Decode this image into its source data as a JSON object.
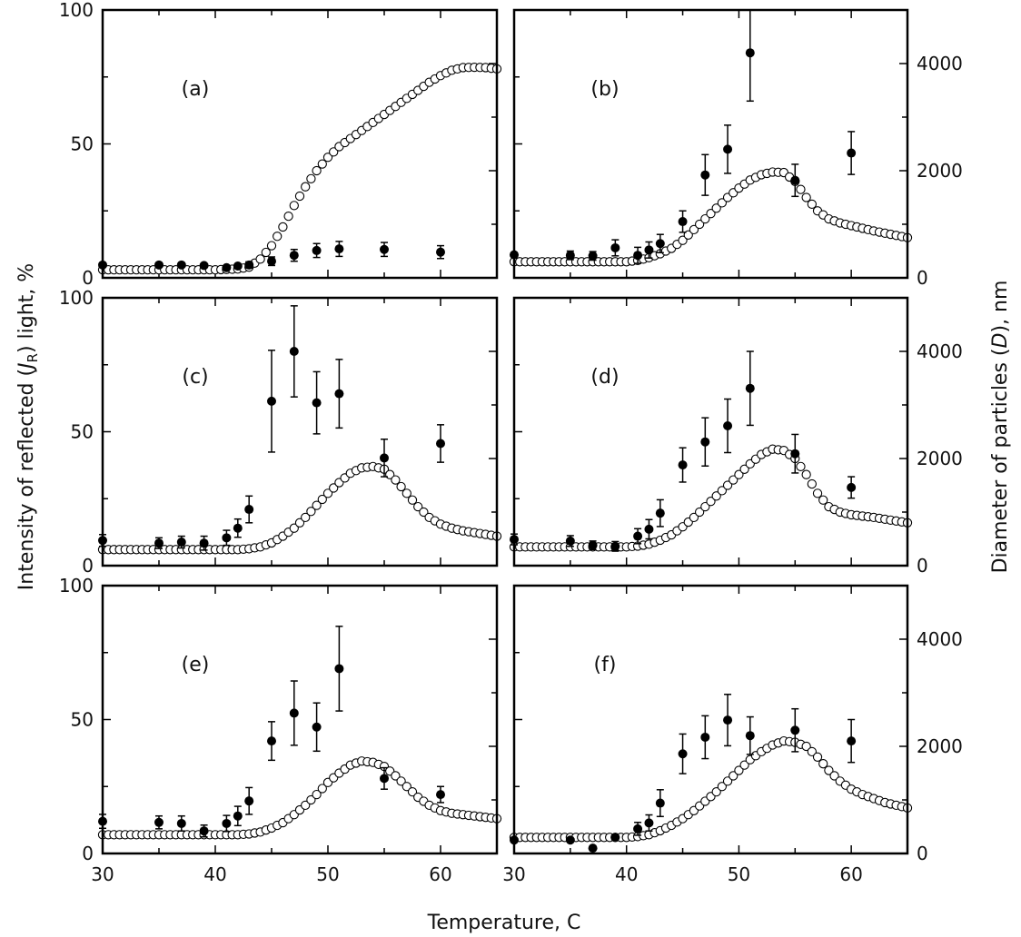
{
  "figure": {
    "xlabel": "Temperature, C",
    "ylabel_left_prefix": "Intensity of  reflected (",
    "ylabel_left_sym": "J",
    "ylabel_left_sub": "R",
    "ylabel_left_suffix": ") light, %",
    "ylabel_right_prefix": "Diameter of particles (",
    "ylabel_right_sym": "D",
    "ylabel_right_suffix": "), nm"
  },
  "chart_data": {
    "type": "scatter",
    "xlim": [
      30,
      65
    ],
    "x_ticks": [
      30,
      40,
      50,
      60
    ],
    "ylim_left": [
      0,
      100
    ],
    "y_ticks_left": [
      0,
      50,
      100
    ],
    "ylim_right": [
      0,
      5000
    ],
    "y_ticks_right": [
      0,
      2000,
      4000
    ],
    "series_info": [
      {
        "name": "Intensity of reflected light (J_R), %",
        "marker": "open circle",
        "axis": "left"
      },
      {
        "name": "Diameter of particles (D), nm",
        "marker": "filled circle with error bars",
        "axis": "right"
      }
    ],
    "panels": [
      {
        "label": "(a)",
        "jr_curve": [
          [
            30,
            3
          ],
          [
            32,
            3
          ],
          [
            34,
            3
          ],
          [
            36,
            3
          ],
          [
            38,
            3
          ],
          [
            40,
            3
          ],
          [
            42,
            3.3
          ],
          [
            43,
            4
          ],
          [
            44,
            7
          ],
          [
            45,
            12
          ],
          [
            46,
            19
          ],
          [
            47,
            27
          ],
          [
            48,
            34
          ],
          [
            49,
            40
          ],
          [
            50,
            45
          ],
          [
            51,
            49
          ],
          [
            52,
            52
          ],
          [
            53,
            55
          ],
          [
            54,
            58
          ],
          [
            55,
            61
          ],
          [
            56,
            64
          ],
          [
            57,
            67
          ],
          [
            58,
            70
          ],
          [
            59,
            73
          ],
          [
            60,
            75.5
          ],
          [
            61,
            77.5
          ],
          [
            62,
            78.5
          ],
          [
            63,
            78.6
          ],
          [
            64,
            78.5
          ],
          [
            65,
            78
          ]
        ],
        "diameter_points": [
          {
            "x": 30,
            "y": 240,
            "err": 0
          },
          {
            "x": 35,
            "y": 240,
            "err": 0
          },
          {
            "x": 37,
            "y": 240,
            "err": 0
          },
          {
            "x": 39,
            "y": 230,
            "err": 0
          },
          {
            "x": 41,
            "y": 190,
            "err": 0
          },
          {
            "x": 42,
            "y": 220,
            "err": 0
          },
          {
            "x": 43,
            "y": 240,
            "err": 60
          },
          {
            "x": 45,
            "y": 310,
            "err": 80
          },
          {
            "x": 47,
            "y": 420,
            "err": 110
          },
          {
            "x": 49,
            "y": 510,
            "err": 130
          },
          {
            "x": 51,
            "y": 540,
            "err": 140
          },
          {
            "x": 55,
            "y": 530,
            "err": 130
          },
          {
            "x": 60,
            "y": 480,
            "err": 120
          }
        ]
      },
      {
        "label": "(b)",
        "jr_curve": [
          [
            30,
            6
          ],
          [
            34,
            6
          ],
          [
            38,
            6
          ],
          [
            40,
            6
          ],
          [
            41,
            6.5
          ],
          [
            42,
            7.5
          ],
          [
            43,
            9
          ],
          [
            44,
            11
          ],
          [
            45,
            14
          ],
          [
            46,
            18
          ],
          [
            47,
            22
          ],
          [
            48,
            26
          ],
          [
            49,
            30
          ],
          [
            50,
            33.5
          ],
          [
            51,
            36.5
          ],
          [
            52,
            38.5
          ],
          [
            53,
            39.5
          ],
          [
            54,
            39.3
          ],
          [
            55,
            36
          ],
          [
            56,
            30
          ],
          [
            57,
            25
          ],
          [
            58,
            22
          ],
          [
            59,
            20.5
          ],
          [
            60,
            19.5
          ],
          [
            62,
            17.5
          ],
          [
            65,
            15
          ]
        ],
        "diameter_points": [
          {
            "x": 30,
            "y": 430,
            "err": 0
          },
          {
            "x": 35,
            "y": 420,
            "err": 80
          },
          {
            "x": 37,
            "y": 410,
            "err": 80
          },
          {
            "x": 39,
            "y": 560,
            "err": 150
          },
          {
            "x": 41,
            "y": 420,
            "err": 150
          },
          {
            "x": 42,
            "y": 520,
            "err": 150
          },
          {
            "x": 43,
            "y": 640,
            "err": 170
          },
          {
            "x": 45,
            "y": 1050,
            "err": 200
          },
          {
            "x": 47,
            "y": 1920,
            "err": 380
          },
          {
            "x": 49,
            "y": 2400,
            "err": 450
          },
          {
            "x": 51,
            "y": 4200,
            "err": 900
          },
          {
            "x": 55,
            "y": 1820,
            "err": 300
          },
          {
            "x": 60,
            "y": 2330,
            "err": 400
          }
        ]
      },
      {
        "label": "(c)",
        "jr_curve": [
          [
            30,
            6
          ],
          [
            34,
            6
          ],
          [
            38,
            6
          ],
          [
            42,
            6
          ],
          [
            43,
            6.3
          ],
          [
            44,
            7
          ],
          [
            45,
            8.5
          ],
          [
            46,
            11
          ],
          [
            47,
            14
          ],
          [
            48,
            18
          ],
          [
            49,
            22.5
          ],
          [
            50,
            27
          ],
          [
            51,
            31
          ],
          [
            52,
            34.5
          ],
          [
            53,
            36.5
          ],
          [
            54,
            37
          ],
          [
            55,
            36
          ],
          [
            56,
            32
          ],
          [
            57,
            27
          ],
          [
            58,
            22
          ],
          [
            59,
            18
          ],
          [
            60,
            15.5
          ],
          [
            61,
            14
          ],
          [
            62,
            13
          ],
          [
            65,
            11
          ]
        ],
        "diameter_points": [
          {
            "x": 30,
            "y": 470,
            "err": 110
          },
          {
            "x": 35,
            "y": 420,
            "err": 100
          },
          {
            "x": 37,
            "y": 440,
            "err": 110
          },
          {
            "x": 39,
            "y": 420,
            "err": 130
          },
          {
            "x": 41,
            "y": 520,
            "err": 140
          },
          {
            "x": 42,
            "y": 700,
            "err": 170
          },
          {
            "x": 43,
            "y": 1050,
            "err": 250
          },
          {
            "x": 45,
            "y": 3070,
            "err": 950
          },
          {
            "x": 47,
            "y": 4000,
            "err": 850
          },
          {
            "x": 49,
            "y": 3040,
            "err": 580
          },
          {
            "x": 51,
            "y": 3210,
            "err": 640
          },
          {
            "x": 55,
            "y": 2010,
            "err": 350
          },
          {
            "x": 60,
            "y": 2280,
            "err": 350
          }
        ]
      },
      {
        "label": "(d)",
        "jr_curve": [
          [
            30,
            7
          ],
          [
            34,
            7
          ],
          [
            38,
            7
          ],
          [
            40,
            7
          ],
          [
            41,
            7.3
          ],
          [
            42,
            8
          ],
          [
            43,
            9.5
          ],
          [
            44,
            11.5
          ],
          [
            45,
            14.5
          ],
          [
            46,
            18
          ],
          [
            47,
            22
          ],
          [
            48,
            26
          ],
          [
            49,
            30
          ],
          [
            50,
            34
          ],
          [
            51,
            38
          ],
          [
            52,
            41.5
          ],
          [
            53,
            43.5
          ],
          [
            54,
            43
          ],
          [
            55,
            40
          ],
          [
            56,
            34
          ],
          [
            57,
            27
          ],
          [
            58,
            22
          ],
          [
            59,
            20
          ],
          [
            60,
            19
          ],
          [
            62,
            18
          ],
          [
            65,
            16
          ]
        ],
        "diameter_points": [
          {
            "x": 30,
            "y": 490,
            "err": 100
          },
          {
            "x": 35,
            "y": 460,
            "err": 100
          },
          {
            "x": 37,
            "y": 380,
            "err": 80
          },
          {
            "x": 39,
            "y": 360,
            "err": 90
          },
          {
            "x": 41,
            "y": 550,
            "err": 140
          },
          {
            "x": 42,
            "y": 680,
            "err": 180
          },
          {
            "x": 43,
            "y": 980,
            "err": 250
          },
          {
            "x": 45,
            "y": 1880,
            "err": 320
          },
          {
            "x": 47,
            "y": 2310,
            "err": 450
          },
          {
            "x": 49,
            "y": 2610,
            "err": 500
          },
          {
            "x": 51,
            "y": 3310,
            "err": 690
          },
          {
            "x": 55,
            "y": 2090,
            "err": 360
          },
          {
            "x": 60,
            "y": 1460,
            "err": 200
          }
        ]
      },
      {
        "label": "(e)",
        "jr_curve": [
          [
            30,
            7
          ],
          [
            34,
            7
          ],
          [
            38,
            7
          ],
          [
            42,
            7
          ],
          [
            43,
            7.3
          ],
          [
            44,
            8
          ],
          [
            45,
            9.5
          ],
          [
            46,
            11.5
          ],
          [
            47,
            14.5
          ],
          [
            48,
            18
          ],
          [
            49,
            22
          ],
          [
            50,
            26.5
          ],
          [
            51,
            30
          ],
          [
            52,
            33
          ],
          [
            53,
            34.5
          ],
          [
            54,
            34
          ],
          [
            55,
            32.5
          ],
          [
            56,
            29
          ],
          [
            57,
            25
          ],
          [
            58,
            21
          ],
          [
            59,
            18
          ],
          [
            60,
            16
          ],
          [
            61,
            15
          ],
          [
            63,
            14
          ],
          [
            65,
            13
          ]
        ],
        "diameter_points": [
          {
            "x": 30,
            "y": 600,
            "err": 130
          },
          {
            "x": 35,
            "y": 580,
            "err": 120
          },
          {
            "x": 37,
            "y": 560,
            "err": 140
          },
          {
            "x": 39,
            "y": 420,
            "err": 110
          },
          {
            "x": 41,
            "y": 560,
            "err": 150
          },
          {
            "x": 42,
            "y": 700,
            "err": 180
          },
          {
            "x": 43,
            "y": 980,
            "err": 250
          },
          {
            "x": 45,
            "y": 2100,
            "err": 360
          },
          {
            "x": 47,
            "y": 2620,
            "err": 600
          },
          {
            "x": 49,
            "y": 2360,
            "err": 450
          },
          {
            "x": 51,
            "y": 3450,
            "err": 790
          },
          {
            "x": 55,
            "y": 1400,
            "err": 200
          },
          {
            "x": 60,
            "y": 1100,
            "err": 150
          }
        ]
      },
      {
        "label": "(f)",
        "jr_curve": [
          [
            30,
            6
          ],
          [
            34,
            6
          ],
          [
            38,
            6
          ],
          [
            40,
            6
          ],
          [
            41,
            6.3
          ],
          [
            42,
            7
          ],
          [
            43,
            8.5
          ],
          [
            44,
            10.5
          ],
          [
            45,
            13
          ],
          [
            46,
            16
          ],
          [
            47,
            19.5
          ],
          [
            48,
            23
          ],
          [
            49,
            27
          ],
          [
            50,
            31
          ],
          [
            51,
            35
          ],
          [
            52,
            38
          ],
          [
            53,
            40.5
          ],
          [
            54,
            42
          ],
          [
            55,
            41.5
          ],
          [
            56,
            40
          ],
          [
            57,
            36
          ],
          [
            58,
            31
          ],
          [
            59,
            27
          ],
          [
            60,
            24
          ],
          [
            61,
            22
          ],
          [
            63,
            19
          ],
          [
            65,
            17
          ]
        ],
        "diameter_points": [
          {
            "x": 30,
            "y": 250,
            "err": 0
          },
          {
            "x": 35,
            "y": 250,
            "err": 0
          },
          {
            "x": 37,
            "y": 100,
            "err": 0
          },
          {
            "x": 39,
            "y": 300,
            "err": 0
          },
          {
            "x": 41,
            "y": 460,
            "err": 120
          },
          {
            "x": 42,
            "y": 570,
            "err": 150
          },
          {
            "x": 43,
            "y": 940,
            "err": 250
          },
          {
            "x": 45,
            "y": 1860,
            "err": 370
          },
          {
            "x": 47,
            "y": 2170,
            "err": 400
          },
          {
            "x": 49,
            "y": 2490,
            "err": 480
          },
          {
            "x": 51,
            "y": 2200,
            "err": 350
          },
          {
            "x": 55,
            "y": 2300,
            "err": 400
          },
          {
            "x": 60,
            "y": 2100,
            "err": 400
          }
        ]
      }
    ]
  }
}
